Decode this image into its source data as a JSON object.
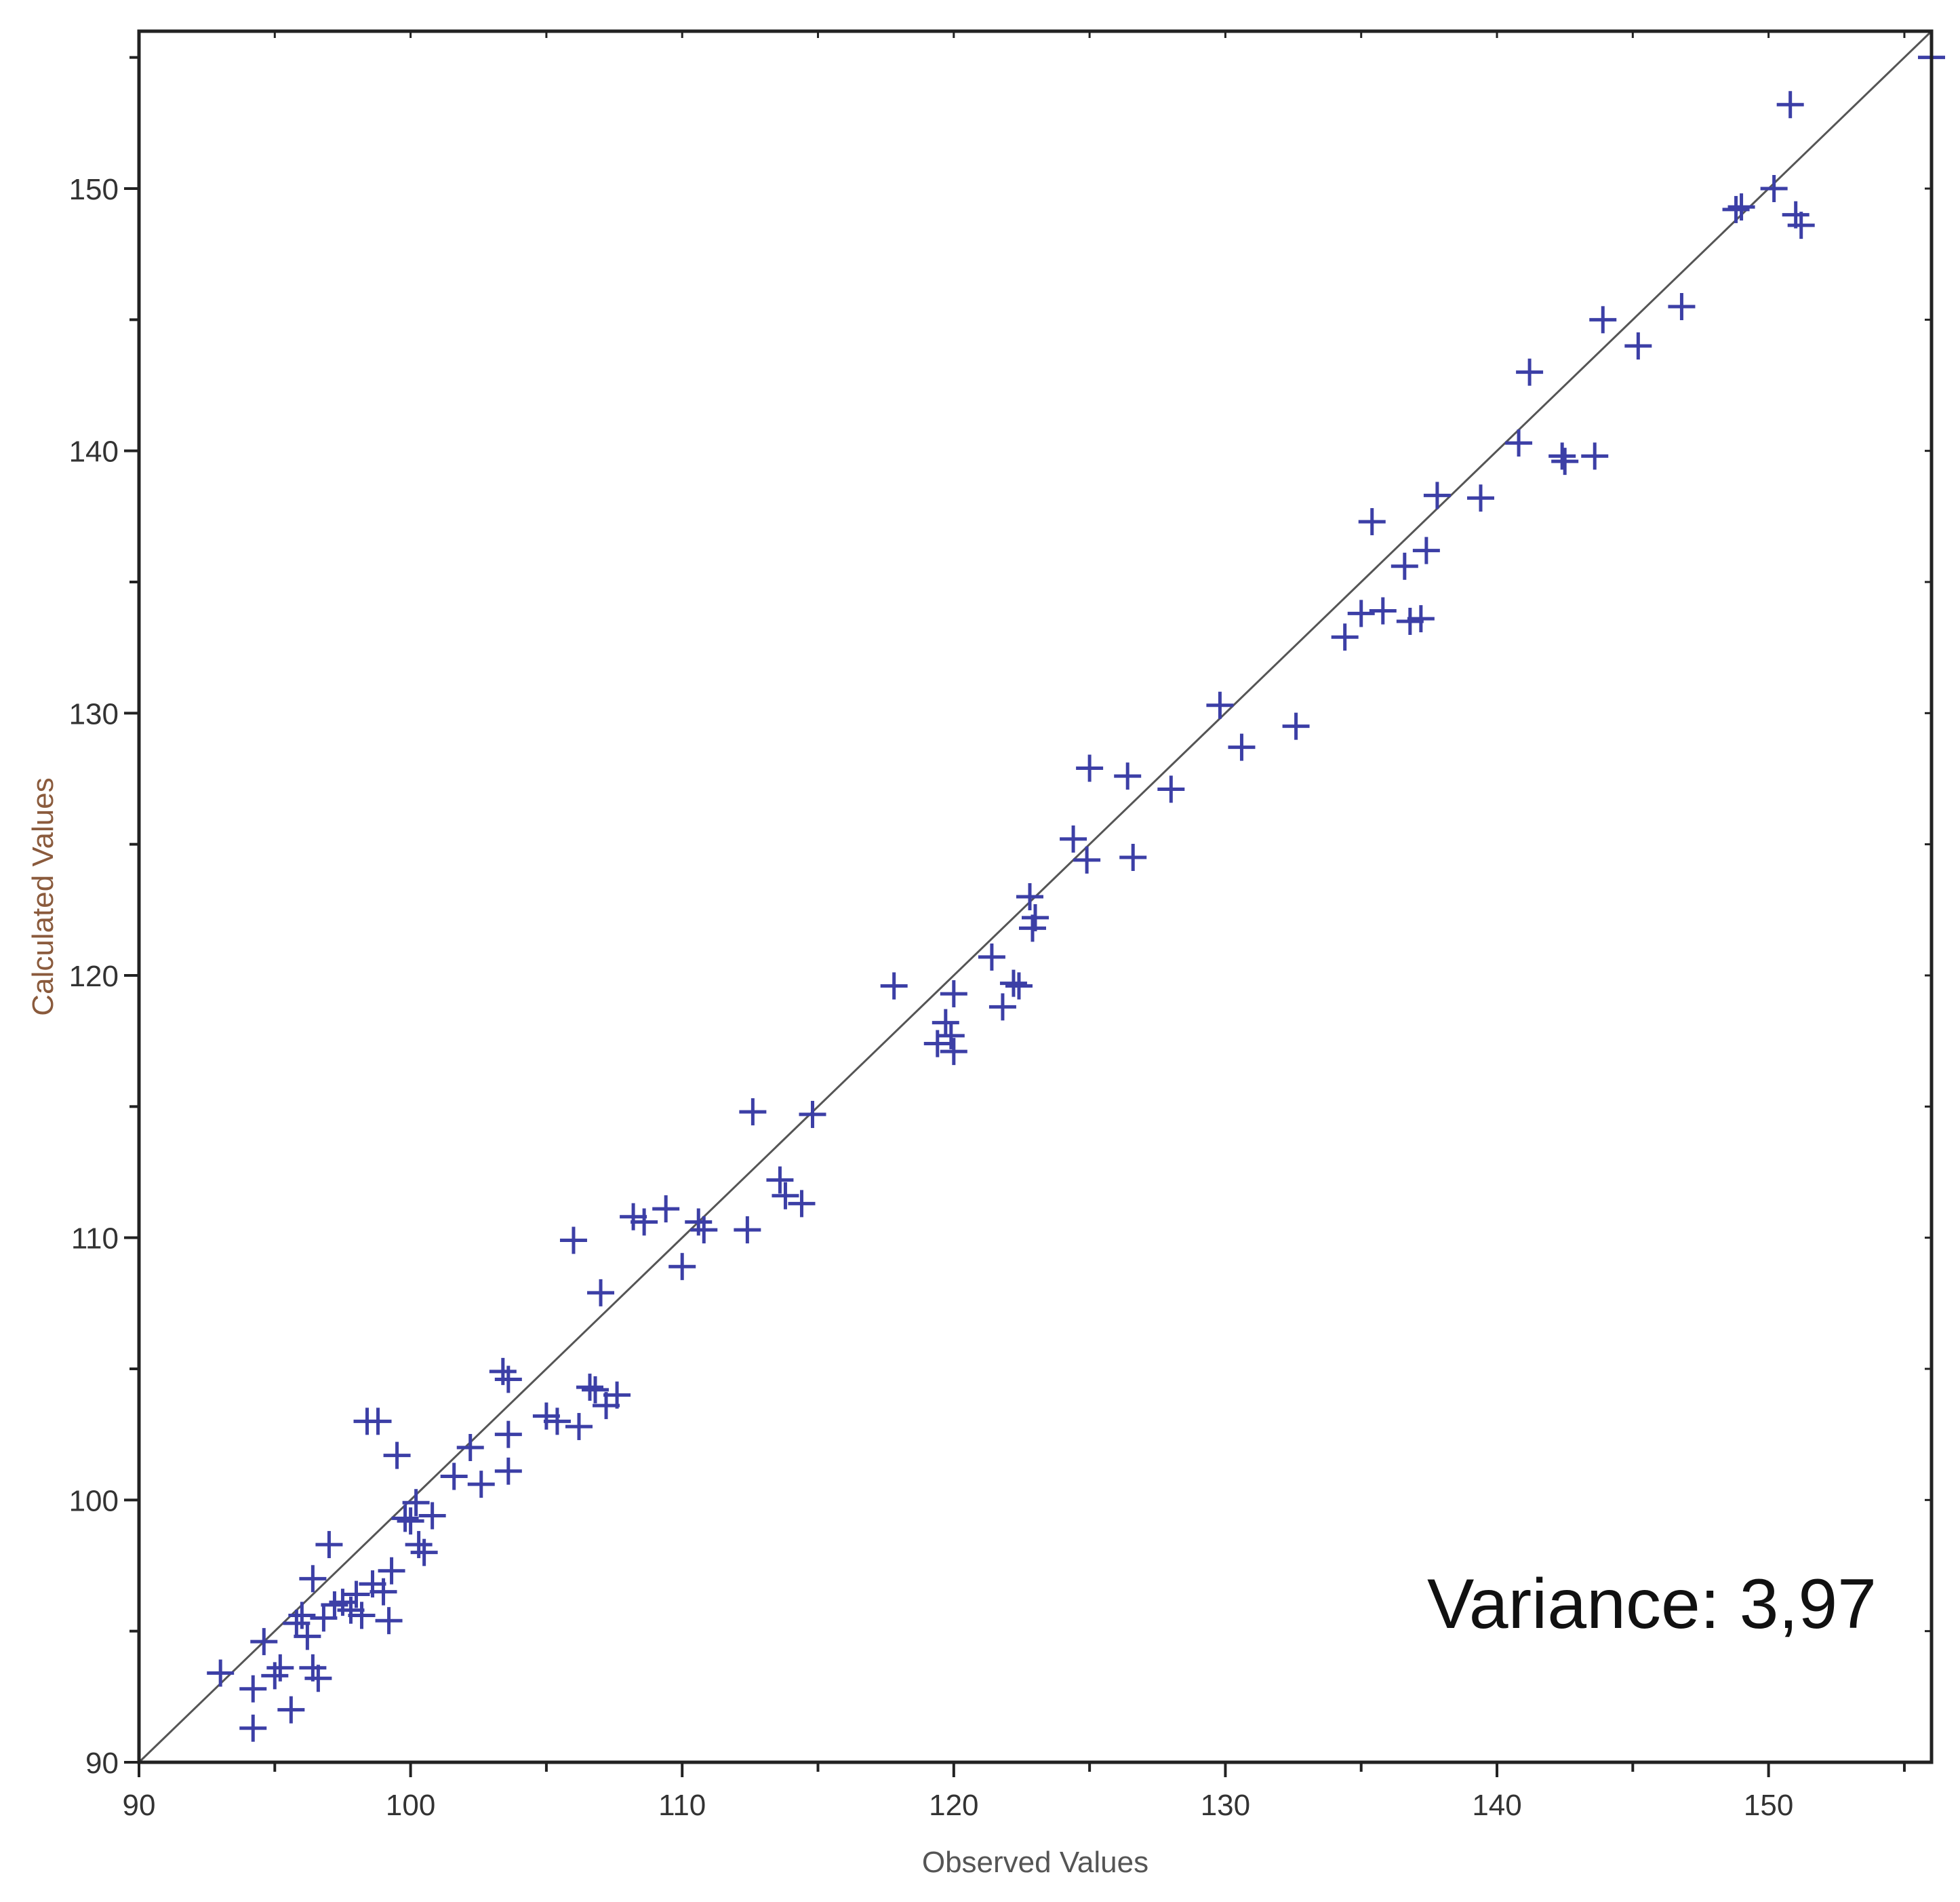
{
  "colors": {
    "marker": "#3c3fa6",
    "line": "#555555",
    "frame": "#222222",
    "xlabel": "#555555",
    "ylabel": "#8a5a3c"
  },
  "chart_data": {
    "type": "scatter",
    "xlabel": "Observed Values",
    "ylabel": "Calculated Values",
    "xlim": [
      90,
      156
    ],
    "ylim": [
      90,
      156
    ],
    "xticks": [
      90,
      100,
      110,
      120,
      130,
      140,
      150
    ],
    "yticks": [
      90,
      100,
      110,
      120,
      130,
      140,
      150
    ],
    "grid": false,
    "legend": "none",
    "reference_line": {
      "from": [
        90,
        90
      ],
      "to": [
        156,
        156
      ]
    },
    "annotation": "Variance: 3,97",
    "series": [
      {
        "marker": "plus",
        "points": [
          [
            93,
            93.4
          ],
          [
            94.2,
            92.8
          ],
          [
            94.2,
            91.3
          ],
          [
            94.6,
            94.6
          ],
          [
            95,
            93.3
          ],
          [
            95.2,
            93.6
          ],
          [
            95.6,
            92
          ],
          [
            95.8,
            95.3
          ],
          [
            96,
            95.6
          ],
          [
            96.2,
            94.8
          ],
          [
            96.4,
            93.6
          ],
          [
            96.4,
            97
          ],
          [
            96.6,
            93.2
          ],
          [
            96.8,
            95.5
          ],
          [
            97,
            98.3
          ],
          [
            97.2,
            96
          ],
          [
            97.5,
            96.1
          ],
          [
            97.8,
            95.8
          ],
          [
            98,
            96.4
          ],
          [
            98.2,
            95.6
          ],
          [
            98.4,
            103
          ],
          [
            98.6,
            96.8
          ],
          [
            98.8,
            103
          ],
          [
            99,
            96.5
          ],
          [
            99.2,
            95.4
          ],
          [
            99.3,
            97.3
          ],
          [
            99.5,
            101.7
          ],
          [
            99.8,
            99.3
          ],
          [
            100,
            99.2
          ],
          [
            100.2,
            99.9
          ],
          [
            100.3,
            98.3
          ],
          [
            100.5,
            98
          ],
          [
            100.8,
            99.4
          ],
          [
            101.6,
            100.9
          ],
          [
            102.2,
            102
          ],
          [
            102.6,
            100.6
          ],
          [
            103.4,
            104.9
          ],
          [
            103.6,
            104.6
          ],
          [
            103.6,
            102.5
          ],
          [
            103.6,
            101.1
          ],
          [
            105,
            103.2
          ],
          [
            105.4,
            103
          ],
          [
            106,
            109.9
          ],
          [
            106.2,
            102.8
          ],
          [
            106.6,
            104.3
          ],
          [
            106.8,
            104.2
          ],
          [
            107,
            107.9
          ],
          [
            107.2,
            103.6
          ],
          [
            107.6,
            104
          ],
          [
            108.2,
            110.8
          ],
          [
            108.6,
            110.6
          ],
          [
            109.4,
            111.1
          ],
          [
            110,
            108.9
          ],
          [
            110.6,
            110.6
          ],
          [
            110.8,
            110.3
          ],
          [
            112.4,
            110.3
          ],
          [
            112.6,
            114.8
          ],
          [
            113.6,
            112.2
          ],
          [
            113.8,
            111.6
          ],
          [
            114.4,
            111.3
          ],
          [
            114.8,
            114.7
          ],
          [
            117.8,
            119.6
          ],
          [
            119.4,
            117.4
          ],
          [
            119.7,
            118.2
          ],
          [
            119.9,
            117.7
          ],
          [
            120,
            117.1
          ],
          [
            120,
            119.3
          ],
          [
            121.4,
            120.7
          ],
          [
            121.8,
            118.8
          ],
          [
            122.2,
            119.7
          ],
          [
            122.4,
            119.6
          ],
          [
            122.8,
            123
          ],
          [
            122.9,
            121.8
          ],
          [
            123,
            122.2
          ],
          [
            124.4,
            125.2
          ],
          [
            124.9,
            124.4
          ],
          [
            125,
            127.9
          ],
          [
            126.4,
            127.6
          ],
          [
            126.6,
            124.5
          ],
          [
            128,
            127.1
          ],
          [
            129.8,
            130.3
          ],
          [
            130.6,
            128.7
          ],
          [
            132.6,
            129.5
          ],
          [
            134.4,
            132.9
          ],
          [
            135,
            133.8
          ],
          [
            135.4,
            137.3
          ],
          [
            135.8,
            133.9
          ],
          [
            136.6,
            135.6
          ],
          [
            136.8,
            133.5
          ],
          [
            137.2,
            133.6
          ],
          [
            137.4,
            136.2
          ],
          [
            137.8,
            138.3
          ],
          [
            139.4,
            138.2
          ],
          [
            140.8,
            140.3
          ],
          [
            141.2,
            143
          ],
          [
            142.4,
            139.8
          ],
          [
            142.5,
            139.6
          ],
          [
            143.6,
            139.8
          ],
          [
            143.9,
            145
          ],
          [
            145.2,
            144
          ],
          [
            146.8,
            145.5
          ],
          [
            148.8,
            149.2
          ],
          [
            149,
            149.3
          ],
          [
            150.2,
            150
          ],
          [
            150.8,
            153.2
          ],
          [
            151,
            149
          ],
          [
            151.2,
            148.6
          ],
          [
            156,
            155
          ]
        ]
      }
    ]
  }
}
